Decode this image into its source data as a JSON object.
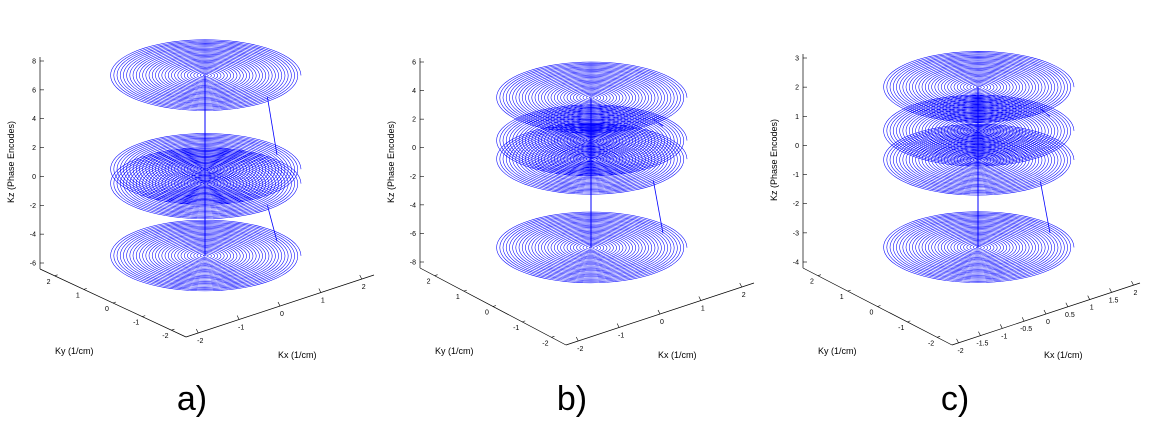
{
  "chart_data": [
    {
      "type": "line",
      "plot": "3d-stacked-spiral",
      "panel_label": "a)",
      "xlabel": "Kx   (1/cm)",
      "ylabel": "Ky   (1/cm)",
      "zlabel": "Kz (Phase Encodes)",
      "x_ticks": [
        "-2",
        "-1",
        "0",
        "1",
        "2"
      ],
      "y_ticks": [
        "-2",
        "-1",
        "0",
        "1",
        "2"
      ],
      "z_ticks": [
        "-6",
        "-4",
        "-2",
        "0",
        "2",
        "4",
        "6",
        "8"
      ],
      "xlim": [
        -2,
        2
      ],
      "ylim": [
        -2,
        2
      ],
      "zlim": [
        -6,
        8
      ],
      "series": [
        {
          "kz": 7,
          "turns": 30,
          "radius": 2
        },
        {
          "kz": 0.5,
          "turns": 30,
          "radius": 2
        },
        {
          "kz": -0.5,
          "turns": 30,
          "radius": 2
        },
        {
          "kz": -5.5,
          "turns": 30,
          "radius": 2
        }
      ],
      "line_color": "#0000ff",
      "grid": false
    },
    {
      "type": "line",
      "plot": "3d-stacked-spiral",
      "panel_label": "b)",
      "xlabel": "Kx   (1/cm)",
      "ylabel": "Ky   (1/cm)",
      "zlabel": "Kz (Phase Encodes)",
      "x_ticks": [
        "-2",
        "-1",
        "0",
        "1",
        "2"
      ],
      "y_ticks": [
        "-2",
        "-1",
        "0",
        "1",
        "2"
      ],
      "z_ticks": [
        "-8",
        "-6",
        "-4",
        "-2",
        "0",
        "2",
        "4",
        "6"
      ],
      "xlim": [
        -2,
        2
      ],
      "ylim": [
        -2,
        2
      ],
      "zlim": [
        -8,
        6
      ],
      "series": [
        {
          "kz": 3.5,
          "turns": 30,
          "radius": 2
        },
        {
          "kz": 0.5,
          "turns": 30,
          "radius": 2
        },
        {
          "kz": -0.8,
          "turns": 30,
          "radius": 2
        },
        {
          "kz": -7,
          "turns": 30,
          "radius": 2
        }
      ],
      "line_color": "#0000ff",
      "grid": false
    },
    {
      "type": "line",
      "plot": "3d-stacked-spiral",
      "panel_label": "c)",
      "xlabel": "Kx   (1/cm)",
      "ylabel": "Ky   (1/cm)",
      "zlabel": "Kz (Phase Encodes)",
      "x_ticks": [
        "-2",
        "-1.5",
        "-1",
        "-0.5",
        "0",
        "0.5",
        "1",
        "1.5",
        "2"
      ],
      "y_ticks": [
        "-2",
        "-1",
        "0",
        "1",
        "2"
      ],
      "z_ticks": [
        "-4",
        "-3",
        "-2",
        "-1",
        "0",
        "1",
        "2",
        "3"
      ],
      "xlim": [
        -2,
        2
      ],
      "ylim": [
        -2,
        2
      ],
      "zlim": [
        -4,
        3
      ],
      "series": [
        {
          "kz": 2,
          "turns": 30,
          "radius": 2
        },
        {
          "kz": 0.5,
          "turns": 30,
          "radius": 2
        },
        {
          "kz": -0.5,
          "turns": 30,
          "radius": 2
        },
        {
          "kz": -3.5,
          "turns": 30,
          "radius": 2
        }
      ],
      "line_color": "#0000ff",
      "grid": false
    }
  ]
}
